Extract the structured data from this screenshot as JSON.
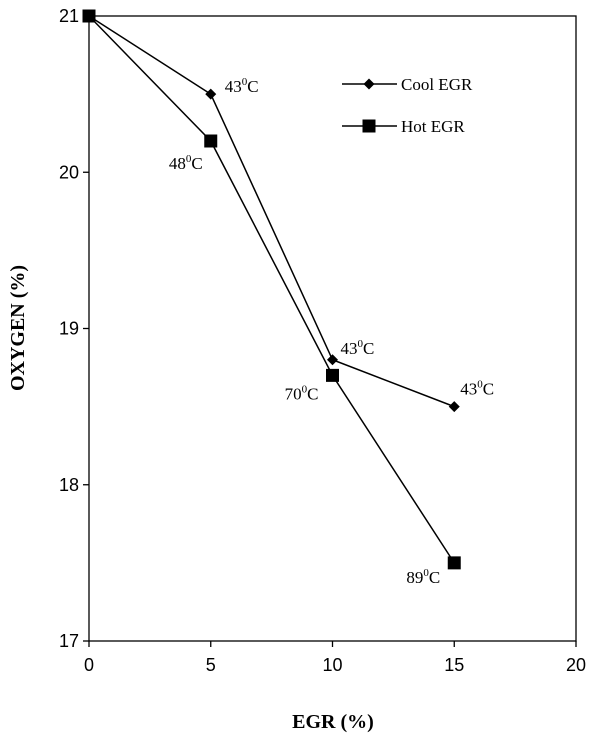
{
  "chart_data": {
    "type": "line",
    "title": "",
    "xlabel": "EGR (%)",
    "ylabel": "OXYGEN (%)",
    "xlim": [
      0,
      20
    ],
    "ylim": [
      17,
      21
    ],
    "xticks": [
      "0",
      "5",
      "10",
      "15",
      "20"
    ],
    "yticks": [
      "17",
      "18",
      "19",
      "20",
      "21"
    ],
    "grid": false,
    "legend_position": "top-right",
    "series": [
      {
        "name": "Cool EGR",
        "marker": "diamond",
        "points": [
          {
            "x": 0,
            "y": 21.0
          },
          {
            "x": 5,
            "y": 20.5,
            "label": {
              "base": "43",
              "sup": "0",
              "unit": "C"
            }
          },
          {
            "x": 10,
            "y": 18.8,
            "label": {
              "base": "43",
              "sup": "0",
              "unit": "C"
            }
          },
          {
            "x": 15,
            "y": 18.5,
            "label": {
              "base": "43",
              "sup": "0",
              "unit": "C"
            }
          }
        ]
      },
      {
        "name": "Hot EGR",
        "marker": "square",
        "points": [
          {
            "x": 0,
            "y": 21.0
          },
          {
            "x": 5,
            "y": 20.2,
            "label": {
              "base": "48",
              "sup": "0",
              "unit": "C"
            }
          },
          {
            "x": 10,
            "y": 18.7,
            "label": {
              "base": "70",
              "sup": "0",
              "unit": "C"
            }
          },
          {
            "x": 15,
            "y": 17.5,
            "label": {
              "base": "89",
              "sup": "0",
              "unit": "C"
            }
          }
        ]
      }
    ]
  }
}
